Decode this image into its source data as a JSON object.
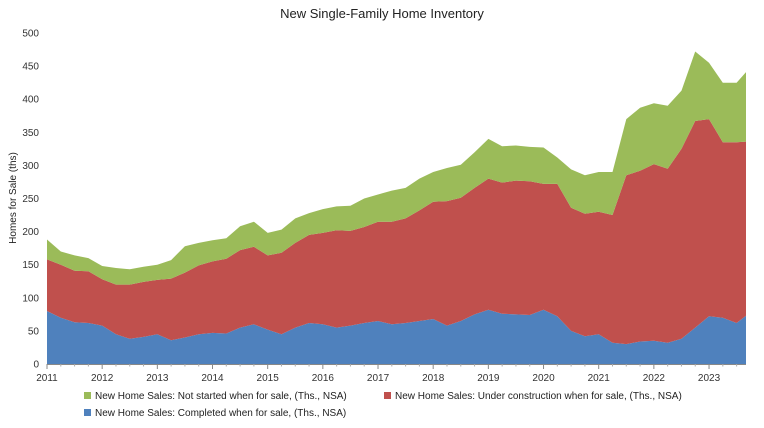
{
  "chart_data": {
    "type": "area",
    "stacked": true,
    "title": "New Single-Family Home Inventory",
    "ylabel": "Homes for Sale (ths)",
    "xlabel": "",
    "ylim": [
      0,
      500
    ],
    "yticks": [
      "0",
      "50",
      "100",
      "150",
      "200",
      "250",
      "300",
      "350",
      "400",
      "450",
      "500"
    ],
    "xlim": [
      2011,
      2023.67
    ],
    "xticks": [
      "2011",
      "2012",
      "2013",
      "2014",
      "2015",
      "2016",
      "2017",
      "2018",
      "2019",
      "2020",
      "2021",
      "2022",
      "2023"
    ],
    "legend_position": "bottom",
    "x": [
      2011.0,
      2011.25,
      2011.5,
      2011.75,
      2012.0,
      2012.25,
      2012.5,
      2012.75,
      2013.0,
      2013.25,
      2013.5,
      2013.75,
      2014.0,
      2014.25,
      2014.5,
      2014.75,
      2015.0,
      2015.25,
      2015.5,
      2015.75,
      2016.0,
      2016.25,
      2016.5,
      2016.75,
      2017.0,
      2017.25,
      2017.5,
      2017.75,
      2018.0,
      2018.25,
      2018.5,
      2018.75,
      2019.0,
      2019.25,
      2019.5,
      2019.75,
      2020.0,
      2020.25,
      2020.5,
      2020.75,
      2021.0,
      2021.25,
      2021.5,
      2021.75,
      2022.0,
      2022.25,
      2022.5,
      2022.75,
      2023.0,
      2023.25,
      2023.5,
      2023.67
    ],
    "series": [
      {
        "name": "New Home Sales: Completed when for sale, (Ths., NSA)",
        "color": "#4f81bd",
        "values": [
          80,
          70,
          63,
          62,
          58,
          45,
          38,
          41,
          45,
          36,
          40,
          45,
          47,
          46,
          55,
          60,
          52,
          45,
          55,
          62,
          60,
          55,
          58,
          62,
          65,
          60,
          62,
          65,
          68,
          58,
          65,
          75,
          82,
          76,
          75,
          74,
          82,
          72,
          50,
          42,
          45,
          32,
          30,
          34,
          35,
          32,
          38,
          55,
          72,
          70,
          62,
          73
        ]
      },
      {
        "name": "New Home Sales: Under construction when for sale, (Ths., NSA)",
        "color": "#c0504d",
        "values": [
          78,
          80,
          78,
          78,
          70,
          75,
          82,
          83,
          82,
          93,
          98,
          104,
          108,
          113,
          117,
          117,
          112,
          123,
          128,
          133,
          138,
          147,
          143,
          145,
          150,
          155,
          158,
          167,
          177,
          188,
          186,
          191,
          198,
          198,
          202,
          202,
          190,
          200,
          186,
          185,
          185,
          193,
          255,
          258,
          267,
          263,
          287,
          312,
          298,
          265,
          273,
          263
        ]
      },
      {
        "name": "New Home Sales: Not started when for sale, (Ths., NSA)",
        "color": "#9bbb59",
        "values": [
          30,
          20,
          23,
          20,
          20,
          25,
          23,
          23,
          23,
          28,
          40,
          34,
          32,
          31,
          36,
          38,
          34,
          35,
          37,
          33,
          36,
          36,
          38,
          43,
          41,
          47,
          46,
          48,
          45,
          50,
          50,
          54,
          60,
          55,
          53,
          52,
          55,
          40,
          58,
          58,
          60,
          65,
          85,
          95,
          92,
          95,
          88,
          105,
          85,
          90,
          90,
          105
        ]
      }
    ],
    "legend": [
      {
        "label": "New Home Sales: Not started when for sale, (Ths., NSA)",
        "color": "#9bbb59"
      },
      {
        "label": "New Home Sales: Under construction when for sale, (Ths., NSA)",
        "color": "#c0504d"
      },
      {
        "label": "New Home Sales: Completed when for sale, (Ths., NSA)",
        "color": "#4f81bd"
      }
    ]
  }
}
